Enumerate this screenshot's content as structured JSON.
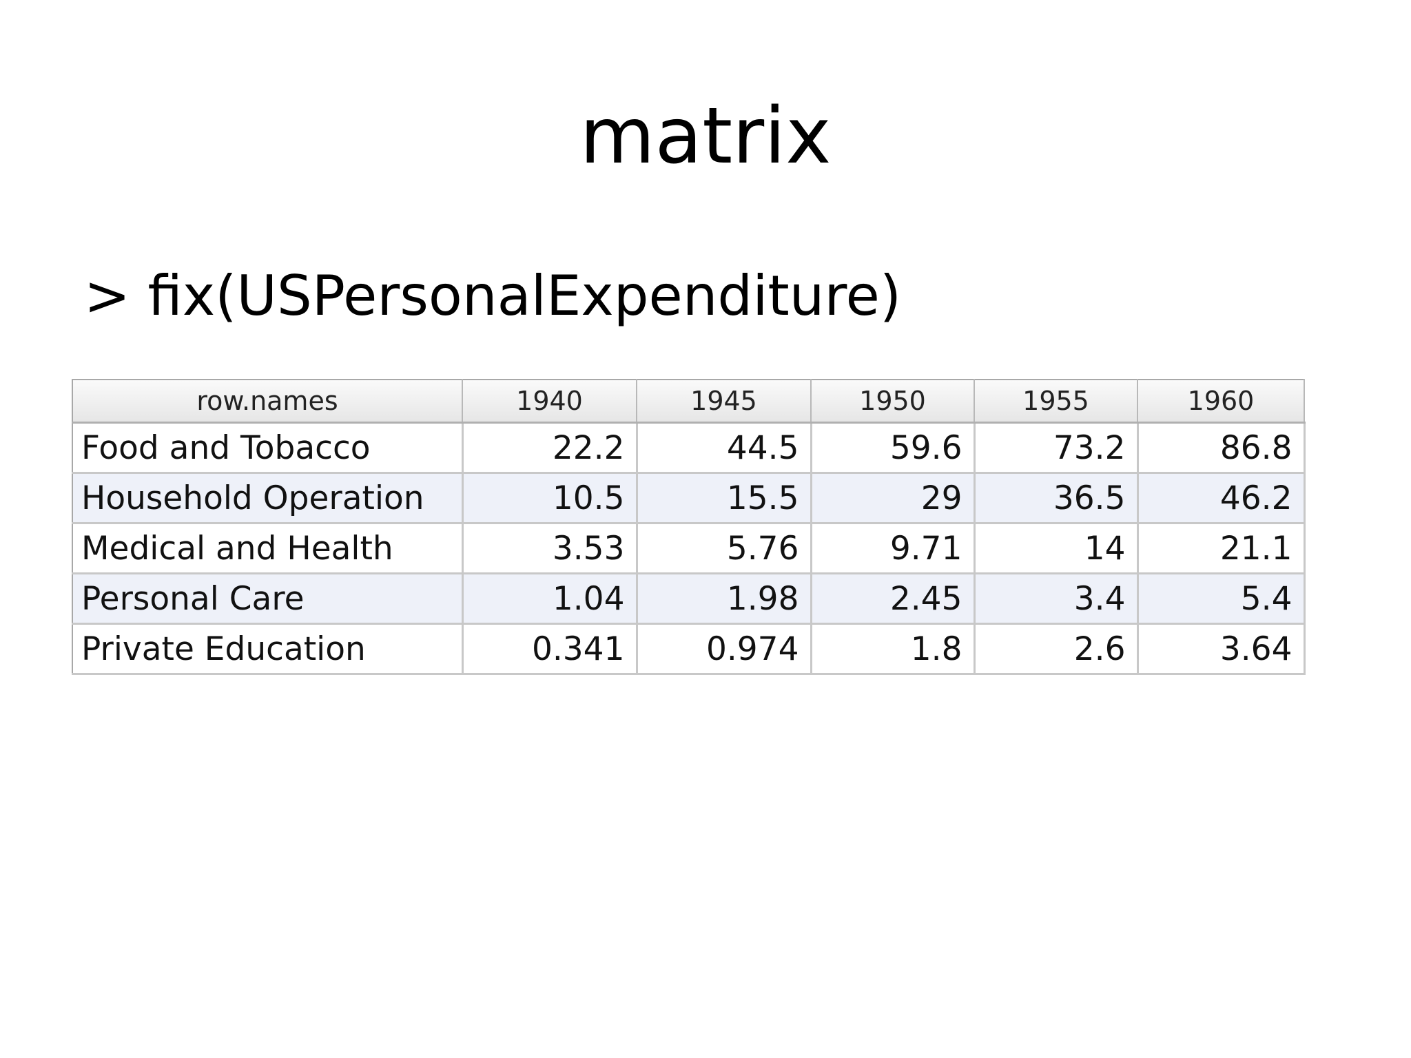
{
  "slide": {
    "title": "matrix",
    "command": "> fix(USPersonalExpenditure)"
  },
  "grid": {
    "headers": [
      "row.names",
      "1940",
      "1945",
      "1950",
      "1955",
      "1960"
    ],
    "rows": [
      {
        "name": "Food and Tobacco",
        "values": [
          "22.2",
          "44.5",
          "59.6",
          "73.2",
          "86.8"
        ]
      },
      {
        "name": "Household Operation",
        "values": [
          "10.5",
          "15.5",
          "29",
          "36.5",
          "46.2"
        ]
      },
      {
        "name": "Medical and Health",
        "values": [
          "3.53",
          "5.76",
          "9.71",
          "14",
          "21.1"
        ]
      },
      {
        "name": "Personal Care",
        "values": [
          "1.04",
          "1.98",
          "2.45",
          "3.4",
          "5.4"
        ]
      },
      {
        "name": "Private Education",
        "values": [
          "0.341",
          "0.974",
          "1.8",
          "2.6",
          "3.64"
        ]
      }
    ],
    "colors": {
      "header_bg": "#e6e6e6",
      "alt_row_bg": "#eef1f9",
      "grid_line": "#c8c8c8"
    }
  }
}
